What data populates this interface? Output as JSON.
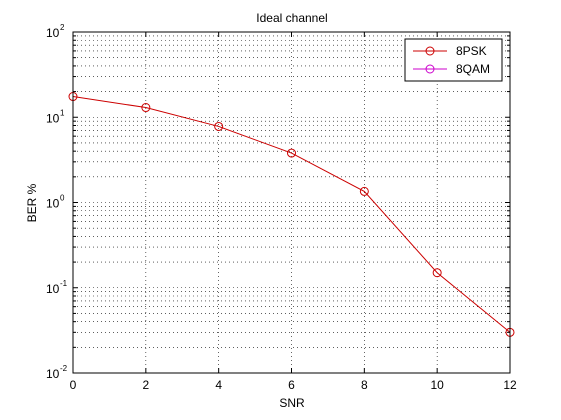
{
  "chart_data": {
    "type": "line",
    "title": "Ideal channel",
    "xlabel": "SNR",
    "ylabel": "BER %",
    "y_scale": "log",
    "xlim": [
      0,
      12
    ],
    "ylim": [
      0.01,
      100
    ],
    "x_ticks": [
      "0",
      "2",
      "4",
      "6",
      "8",
      "10",
      "12"
    ],
    "y_ticks": [
      {
        "base": "10",
        "exp": "-2"
      },
      {
        "base": "10",
        "exp": "-1"
      },
      {
        "base": "10",
        "exp": "0"
      },
      {
        "base": "10",
        "exp": "1"
      },
      {
        "base": "10",
        "exp": "2"
      }
    ],
    "grid": true,
    "legend_position": "top-right",
    "series": [
      {
        "name": "8PSK",
        "color": "#cc0000",
        "marker": "circle",
        "x": [
          0,
          2,
          4,
          6,
          8,
          10,
          12
        ],
        "y": [
          17.5,
          13,
          7.8,
          3.8,
          1.35,
          0.15,
          0.03
        ]
      },
      {
        "name": "8QAM",
        "color": "#cc00cc",
        "marker": "circle",
        "x": [],
        "y": []
      }
    ]
  }
}
